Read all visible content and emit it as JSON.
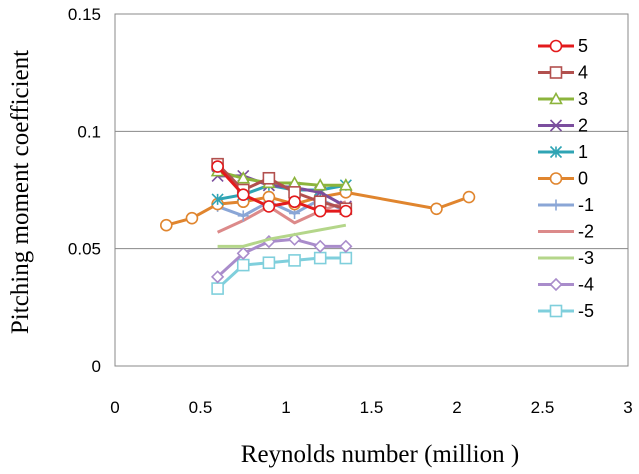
{
  "chart_data": {
    "type": "line",
    "title": "",
    "xlabel": "Reynolds number (million )",
    "ylabel": "Pitching moment coefficient",
    "xlim": [
      0,
      3
    ],
    "ylim": [
      0,
      0.15
    ],
    "x_ticks": [
      "0",
      "0.5",
      "1",
      "1.5",
      "2",
      "2.5",
      "3"
    ],
    "y_ticks": [
      "0",
      "0.05",
      "0.1",
      "0.15"
    ],
    "x_tick_values": [
      0,
      0.5,
      1,
      1.5,
      2,
      2.5,
      3
    ],
    "y_tick_values": [
      0,
      0.05,
      0.1,
      0.15
    ],
    "grid": "horizontal",
    "legend_position": "right",
    "series": [
      {
        "name": "5",
        "color": "#e31a1c",
        "marker": "circle-open",
        "x": [
          0.6,
          0.75,
          0.9,
          1.05,
          1.2,
          1.35
        ],
        "y": [
          0.085,
          0.073,
          0.068,
          0.07,
          0.066,
          0.066
        ]
      },
      {
        "name": "4",
        "color": "#b2504e",
        "marker": "square-open",
        "x": [
          0.6,
          0.75,
          0.9,
          1.05,
          1.2,
          1.35
        ],
        "y": [
          0.086,
          0.075,
          0.08,
          0.074,
          0.07,
          0.067
        ]
      },
      {
        "name": "3",
        "color": "#8cb43c",
        "marker": "triangle-open",
        "x": [
          0.6,
          0.75,
          0.9,
          1.05,
          1.2,
          1.35
        ],
        "y": [
          0.083,
          0.08,
          0.078,
          0.078,
          0.077,
          0.077
        ]
      },
      {
        "name": "2",
        "color": "#7b4e9e",
        "marker": "x",
        "x": [
          0.6,
          0.75,
          0.9,
          1.05,
          1.2,
          1.35
        ],
        "y": [
          0.081,
          0.081,
          0.077,
          0.076,
          0.074,
          0.068
        ]
      },
      {
        "name": "1",
        "color": "#2fa4b4",
        "marker": "star",
        "x": [
          0.6,
          0.75,
          0.9,
          1.05,
          1.2,
          1.35
        ],
        "y": [
          0.071,
          0.073,
          0.077,
          0.075,
          0.075,
          0.077
        ]
      },
      {
        "name": "0",
        "color": "#e0852e",
        "marker": "circle-open",
        "x": [
          0.3,
          0.45,
          0.6,
          0.75,
          0.9,
          1.05,
          1.2,
          1.35,
          1.88,
          2.07
        ],
        "y": [
          0.06,
          0.063,
          0.069,
          0.07,
          0.072,
          0.069,
          0.072,
          0.074,
          0.067,
          0.072
        ]
      },
      {
        "name": "-1",
        "color": "#8aa6d6",
        "marker": "plus",
        "x": [
          0.6,
          0.75,
          0.9,
          1.05,
          1.2,
          1.35
        ],
        "y": [
          0.068,
          0.064,
          0.07,
          0.065,
          0.071,
          0.066
        ]
      },
      {
        "name": "-2",
        "color": "#dc8a8a",
        "marker": "none",
        "x": [
          0.6,
          0.75,
          0.9,
          1.05,
          1.2,
          1.35
        ],
        "y": [
          0.057,
          0.062,
          0.068,
          0.061,
          0.066,
          0.07
        ]
      },
      {
        "name": "-3",
        "color": "#b4d68a",
        "marker": "none",
        "x": [
          0.6,
          0.75,
          0.9,
          1.05,
          1.2,
          1.35
        ],
        "y": [
          0.051,
          0.051,
          0.054,
          0.056,
          0.058,
          0.06
        ]
      },
      {
        "name": "-4",
        "color": "#a98ccb",
        "marker": "diamond-open",
        "x": [
          0.6,
          0.75,
          0.9,
          1.05,
          1.2,
          1.35
        ],
        "y": [
          0.038,
          0.048,
          0.053,
          0.054,
          0.051,
          0.051
        ]
      },
      {
        "name": "-5",
        "color": "#7fcfdc",
        "marker": "square-open",
        "x": [
          0.6,
          0.75,
          0.9,
          1.05,
          1.2,
          1.35
        ],
        "y": [
          0.033,
          0.043,
          0.044,
          0.045,
          0.046,
          0.046
        ]
      }
    ]
  }
}
